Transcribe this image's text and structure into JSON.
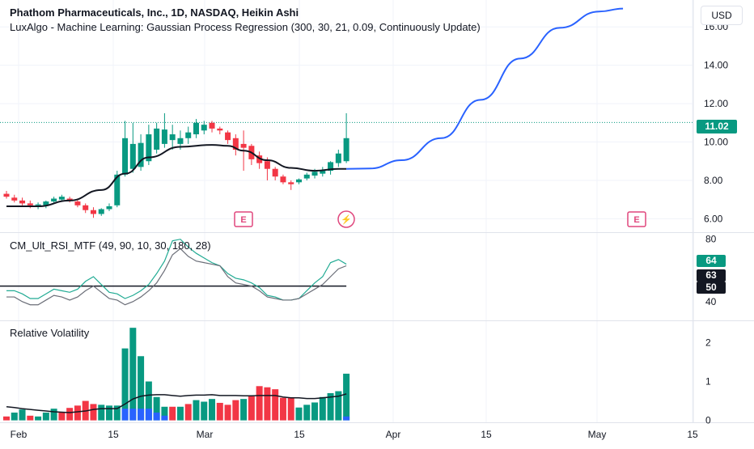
{
  "header": {
    "symbol_line": "Phathom Pharmaceuticals, Inc., 1D, NASDAQ, Heikin Ashi",
    "indicator_line": "LuxAlgo - Machine Learning: Gaussian Process Regression (300, 30, 21, 0.09, Continuously Update)"
  },
  "currency_button": "USD",
  "price_tag": {
    "value": "11.02",
    "color": "#089981"
  },
  "rsi_tags": [
    {
      "value": "64",
      "color": "#089981"
    },
    {
      "value": "63",
      "color": "#131722"
    },
    {
      "value": "50",
      "color": "#131722"
    }
  ],
  "x_axis_labels": [
    "Feb",
    "15",
    "Mar",
    "15",
    "Apr",
    "15",
    "May",
    "15"
  ],
  "markers": [
    {
      "type": "earnings",
      "label": "E",
      "color": "#e0477d"
    },
    {
      "type": "dividend-flash",
      "label": "⚡",
      "color": "#e0477d"
    },
    {
      "type": "earnings",
      "label": "E",
      "color": "#e0477d"
    }
  ],
  "chart_data": [
    {
      "type": "candlestick",
      "title": "Phathom Pharmaceuticals, Inc., 1D, NASDAQ, Heikin Ashi",
      "ylim": [
        5.3,
        17.4
      ],
      "yticks": [
        6.0,
        8.0,
        10.0,
        12.0,
        14.0,
        16.0
      ],
      "ytick_labels": [
        "6.00",
        "8.00",
        "10.00",
        "12.00",
        "14.00",
        "16.00"
      ],
      "last_price": 11.02,
      "up_color": "#089981",
      "down_color": "#f23645",
      "candles": [
        {
          "o": 7.3,
          "h": 7.45,
          "l": 7.05,
          "c": 7.15
        },
        {
          "o": 7.1,
          "h": 7.25,
          "l": 6.85,
          "c": 6.95
        },
        {
          "o": 6.95,
          "h": 7.1,
          "l": 6.7,
          "c": 6.8
        },
        {
          "o": 6.8,
          "h": 6.95,
          "l": 6.55,
          "c": 6.7
        },
        {
          "o": 6.7,
          "h": 6.85,
          "l": 6.5,
          "c": 6.75
        },
        {
          "o": 6.7,
          "h": 6.95,
          "l": 6.55,
          "c": 6.9
        },
        {
          "o": 6.9,
          "h": 7.15,
          "l": 6.8,
          "c": 7.05
        },
        {
          "o": 7.0,
          "h": 7.25,
          "l": 6.9,
          "c": 7.15
        },
        {
          "o": 7.05,
          "h": 7.15,
          "l": 6.85,
          "c": 6.95
        },
        {
          "o": 6.9,
          "h": 7.0,
          "l": 6.6,
          "c": 6.7
        },
        {
          "o": 6.7,
          "h": 6.8,
          "l": 6.3,
          "c": 6.45
        },
        {
          "o": 6.45,
          "h": 6.6,
          "l": 6.05,
          "c": 6.25
        },
        {
          "o": 6.25,
          "h": 6.55,
          "l": 6.15,
          "c": 6.5
        },
        {
          "o": 6.5,
          "h": 6.8,
          "l": 6.4,
          "c": 6.65
        },
        {
          "o": 6.7,
          "h": 8.5,
          "l": 6.6,
          "c": 8.3
        },
        {
          "o": 8.3,
          "h": 11.1,
          "l": 8.2,
          "c": 10.2
        },
        {
          "o": 8.6,
          "h": 11.0,
          "l": 8.4,
          "c": 9.9
        },
        {
          "o": 8.7,
          "h": 10.4,
          "l": 8.5,
          "c": 9.95
        },
        {
          "o": 9.0,
          "h": 10.9,
          "l": 8.8,
          "c": 10.4
        },
        {
          "o": 9.6,
          "h": 11.0,
          "l": 9.4,
          "c": 10.7
        },
        {
          "o": 9.9,
          "h": 11.5,
          "l": 9.7,
          "c": 10.65
        },
        {
          "o": 10.1,
          "h": 10.9,
          "l": 9.6,
          "c": 10.4
        },
        {
          "o": 9.9,
          "h": 10.6,
          "l": 9.6,
          "c": 10.2
        },
        {
          "o": 10.2,
          "h": 10.8,
          "l": 9.9,
          "c": 10.5
        },
        {
          "o": 10.4,
          "h": 11.2,
          "l": 10.2,
          "c": 11.0
        },
        {
          "o": 10.6,
          "h": 11.1,
          "l": 10.4,
          "c": 10.9
        },
        {
          "o": 11.0,
          "h": 11.1,
          "l": 10.5,
          "c": 10.7
        },
        {
          "o": 10.7,
          "h": 10.8,
          "l": 10.4,
          "c": 10.6
        },
        {
          "o": 10.5,
          "h": 10.6,
          "l": 9.9,
          "c": 10.1
        },
        {
          "o": 10.2,
          "h": 10.4,
          "l": 9.3,
          "c": 9.6
        },
        {
          "o": 9.9,
          "h": 10.6,
          "l": 8.5,
          "c": 9.7
        },
        {
          "o": 9.8,
          "h": 9.9,
          "l": 8.8,
          "c": 9.1
        },
        {
          "o": 9.3,
          "h": 9.5,
          "l": 8.6,
          "c": 8.9
        },
        {
          "o": 9.0,
          "h": 9.2,
          "l": 8.0,
          "c": 8.6
        },
        {
          "o": 8.6,
          "h": 8.7,
          "l": 8.0,
          "c": 8.2
        },
        {
          "o": 8.2,
          "h": 8.3,
          "l": 7.8,
          "c": 7.9
        },
        {
          "o": 7.9,
          "h": 8.0,
          "l": 7.5,
          "c": 7.8
        },
        {
          "o": 7.9,
          "h": 8.1,
          "l": 7.8,
          "c": 8.05
        },
        {
          "o": 8.1,
          "h": 8.4,
          "l": 8.0,
          "c": 8.3
        },
        {
          "o": 8.25,
          "h": 8.6,
          "l": 8.1,
          "c": 8.45
        },
        {
          "o": 8.35,
          "h": 8.7,
          "l": 8.2,
          "c": 8.5
        },
        {
          "o": 8.5,
          "h": 9.0,
          "l": 8.3,
          "c": 8.95
        },
        {
          "o": 8.9,
          "h": 9.6,
          "l": 8.7,
          "c": 9.4
        },
        {
          "o": 9.0,
          "h": 11.5,
          "l": 8.9,
          "c": 10.2
        }
      ],
      "series": [
        {
          "name": "GPR fit",
          "color": "#131722",
          "style": "solid",
          "x": [
            0,
            4,
            8,
            12,
            15,
            18,
            22,
            26,
            28,
            30,
            33,
            36,
            39,
            42,
            43
          ],
          "values": [
            6.65,
            6.65,
            6.95,
            7.5,
            8.35,
            9.2,
            9.75,
            9.85,
            9.8,
            9.55,
            9.05,
            8.65,
            8.5,
            8.6,
            8.6
          ]
        },
        {
          "name": "GPR forecast",
          "color": "#2962ff",
          "style": "solid",
          "x": [
            43,
            46,
            50,
            55,
            60,
            65,
            70,
            75,
            78
          ],
          "values": [
            8.6,
            8.62,
            9.05,
            10.2,
            12.2,
            14.35,
            15.95,
            16.8,
            16.95
          ]
        }
      ]
    },
    {
      "type": "line",
      "title": "CM_Ult_RSI_MTF (49, 90, 10, 30, 180, 28)",
      "ylim": [
        28,
        84
      ],
      "yticks": [
        40,
        80
      ],
      "ytick_labels": [
        "40",
        "80"
      ],
      "reference_line": 50,
      "series": [
        {
          "name": "RSI",
          "color": "#22ab94",
          "values": [
            47,
            47,
            45,
            42,
            42,
            45,
            48,
            47,
            46,
            48,
            53,
            56,
            51,
            46,
            45,
            42,
            44,
            47,
            51,
            58,
            66,
            79,
            80,
            75,
            71,
            68,
            65,
            63,
            58,
            55,
            54,
            52,
            49,
            44,
            43,
            41,
            41,
            42,
            47,
            52,
            56,
            65,
            67,
            64
          ]
        },
        {
          "name": "RSI MTF",
          "color": "#6b6e78",
          "values": [
            43,
            43,
            40,
            38,
            38,
            41,
            44,
            43,
            41,
            43,
            47,
            50,
            46,
            42,
            41,
            38,
            40,
            43,
            47,
            52,
            60,
            70,
            74,
            69,
            66,
            65,
            64,
            63,
            56,
            52,
            51,
            50,
            47,
            43,
            42,
            41,
            41,
            42,
            45,
            48,
            51,
            56,
            61,
            63
          ]
        }
      ]
    },
    {
      "type": "bar",
      "title": "Relative Volatility",
      "ylim": [
        -0.05,
        2.55
      ],
      "yticks": [
        0,
        1,
        2
      ],
      "ytick_labels": [
        "0",
        "1",
        "2"
      ],
      "series": [
        {
          "name": "Volatility",
          "values": [
            0.1,
            0.2,
            0.28,
            0.12,
            0.1,
            0.2,
            0.3,
            0.22,
            0.32,
            0.38,
            0.5,
            0.42,
            0.4,
            0.38,
            0.38,
            1.85,
            2.38,
            1.65,
            1.0,
            0.6,
            0.35,
            0.35,
            0.35,
            0.42,
            0.52,
            0.48,
            0.55,
            0.45,
            0.4,
            0.52,
            0.55,
            0.62,
            0.88,
            0.85,
            0.8,
            0.58,
            0.58,
            0.33,
            0.4,
            0.46,
            0.6,
            0.7,
            0.75,
            1.2
          ],
          "colors": [
            "r",
            "g",
            "g",
            "r",
            "g",
            "g",
            "g",
            "r",
            "r",
            "r",
            "r",
            "r",
            "g",
            "g",
            "g",
            "g",
            "g",
            "g",
            "g",
            "g",
            "g",
            "r",
            "g",
            "r",
            "g",
            "g",
            "g",
            "r",
            "r",
            "r",
            "g",
            "r",
            "r",
            "r",
            "r",
            "r",
            "r",
            "g",
            "g",
            "g",
            "g",
            "g",
            "g",
            "g"
          ]
        },
        {
          "name": "Low-volatility part",
          "color": "#2962ff",
          "values": [
            0.0,
            0.0,
            0.0,
            0.0,
            0.0,
            0.0,
            0.0,
            0.0,
            0.0,
            0.0,
            0.0,
            0.0,
            0.0,
            0.0,
            0.0,
            0.3,
            0.3,
            0.3,
            0.3,
            0.2,
            0.12,
            0.0,
            0.0,
            0.0,
            0.0,
            0.0,
            0.0,
            0.0,
            0.0,
            0.0,
            0.0,
            0.0,
            0.0,
            0.0,
            0.0,
            0.0,
            0.0,
            0.0,
            0.0,
            0.0,
            0.0,
            0.0,
            0.0,
            0.1
          ]
        },
        {
          "name": "Average",
          "color": "#131722",
          "values": [
            0.35,
            0.33,
            0.3,
            0.28,
            0.26,
            0.24,
            0.22,
            0.21,
            0.2,
            0.22,
            0.24,
            0.28,
            0.3,
            0.3,
            0.3,
            0.42,
            0.55,
            0.62,
            0.65,
            0.66,
            0.66,
            0.64,
            0.62,
            0.64,
            0.65,
            0.65,
            0.66,
            0.64,
            0.64,
            0.64,
            0.63,
            0.63,
            0.64,
            0.64,
            0.64,
            0.6,
            0.58,
            0.58,
            0.56,
            0.56,
            0.58,
            0.6,
            0.62,
            0.68
          ]
        }
      ]
    }
  ]
}
